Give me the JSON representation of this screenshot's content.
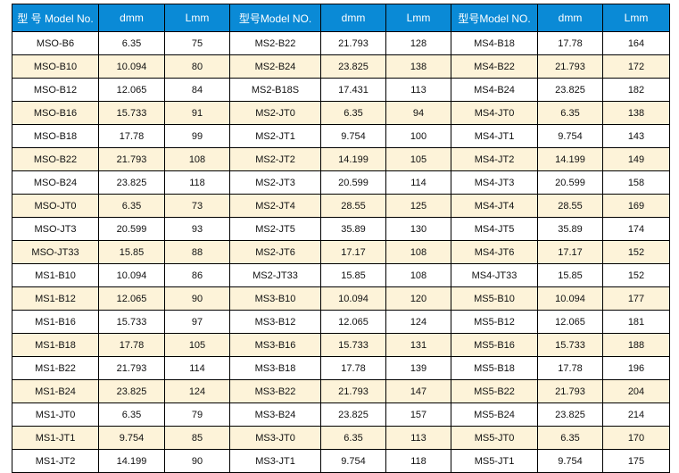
{
  "table": {
    "header_color": "#0a8ad6",
    "stripe_color": "#fdf3d9",
    "headers": [
      "型 号 Model No.",
      "dmm",
      "Lmm",
      "型号Model  NO.",
      "dmm",
      "Lmm",
      "型号Model  NO.",
      "dmm",
      "Lmm"
    ],
    "rows": [
      [
        "MSO-B6",
        "6.35",
        "75",
        "MS2-B22",
        "21.793",
        "128",
        "MS4-B18",
        "17.78",
        "164"
      ],
      [
        "MSO-B10",
        "10.094",
        "80",
        "MS2-B24",
        "23.825",
        "138",
        "MS4-B22",
        "21.793",
        "172"
      ],
      [
        "MSO-B12",
        "12.065",
        "84",
        "MS2-B18S",
        "17.431",
        "113",
        "MS4-B24",
        "23.825",
        "182"
      ],
      [
        "MSO-B16",
        "15.733",
        "91",
        "MS2-JT0",
        "6.35",
        "94",
        "MS4-JT0",
        "6.35",
        "138"
      ],
      [
        "MSO-B18",
        "17.78",
        "99",
        "MS2-JT1",
        "9.754",
        "100",
        "MS4-JT1",
        "9.754",
        "143"
      ],
      [
        "MSO-B22",
        "21.793",
        "108",
        "MS2-JT2",
        "14.199",
        "105",
        "MS4-JT2",
        "14.199",
        "149"
      ],
      [
        "MSO-B24",
        "23.825",
        "118",
        "MS2-JT3",
        "20.599",
        "114",
        "MS4-JT3",
        "20.599",
        "158"
      ],
      [
        "MSO-JT0",
        "6.35",
        "73",
        "MS2-JT4",
        "28.55",
        "125",
        "MS4-JT4",
        "28.55",
        "169"
      ],
      [
        "MSO-JT3",
        "20.599",
        "93",
        "MS2-JT5",
        "35.89",
        "130",
        "MS4-JT5",
        "35.89",
        "174"
      ],
      [
        "MSO-JT33",
        "15.85",
        "88",
        "MS2-JT6",
        "17.17",
        "108",
        "MS4-JT6",
        "17.17",
        "152"
      ],
      [
        "MS1-B10",
        "10.094",
        "86",
        "MS2-JT33",
        "15.85",
        "108",
        "MS4-JT33",
        "15.85",
        "152"
      ],
      [
        "MS1-B12",
        "12.065",
        "90",
        "MS3-B10",
        "10.094",
        "120",
        "MS5-B10",
        "10.094",
        "177"
      ],
      [
        "MS1-B16",
        "15.733",
        "97",
        "MS3-B12",
        "12.065",
        "124",
        "MS5-B12",
        "12.065",
        "181"
      ],
      [
        "MS1-B18",
        "17.78",
        "105",
        "MS3-B16",
        "15.733",
        "131",
        "MS5-B16",
        "15.733",
        "188"
      ],
      [
        "MS1-B22",
        "21.793",
        "114",
        "MS3-B18",
        "17.78",
        "139",
        "MS5-B18",
        "17.78",
        "196"
      ],
      [
        "MS1-B24",
        "23.825",
        "124",
        "MS3-B22",
        "21.793",
        "147",
        "MS5-B22",
        "21.793",
        "204"
      ],
      [
        "MS1-JT0",
        "6.35",
        "79",
        "MS3-B24",
        "23.825",
        "157",
        "MS5-B24",
        "23.825",
        "214"
      ],
      [
        "MS1-JT1",
        "9.754",
        "85",
        "MS3-JT0",
        "6.35",
        "113",
        "MS5-JT0",
        "6.35",
        "170"
      ],
      [
        "MS1-JT2",
        "14.199",
        "90",
        "MS3-JT1",
        "9.754",
        "118",
        "MS5-JT1",
        "9.754",
        "175"
      ]
    ]
  }
}
